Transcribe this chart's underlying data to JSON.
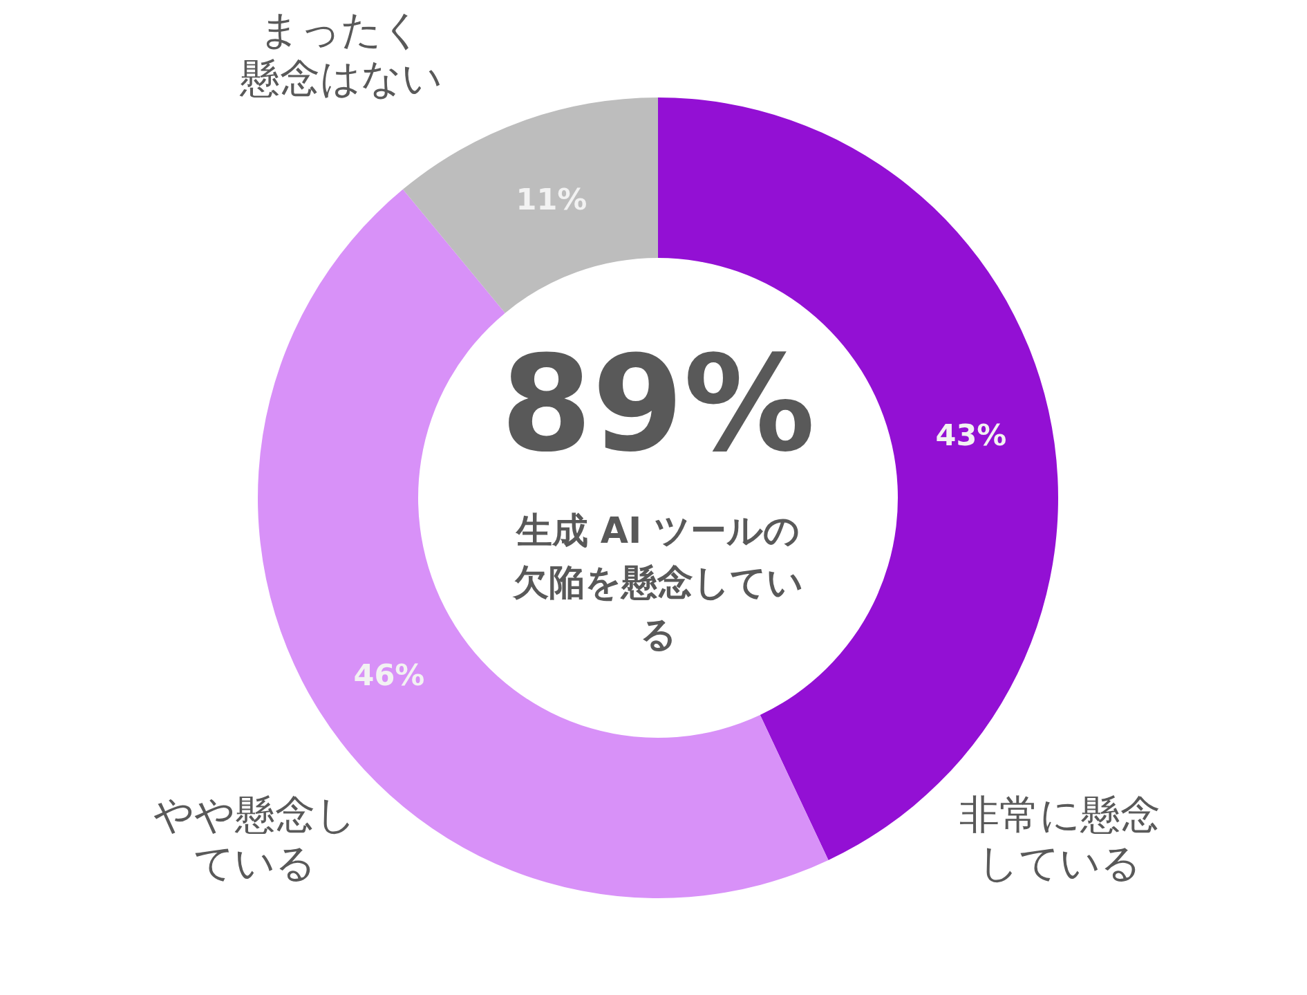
{
  "chart_data": {
    "type": "donut",
    "categories": [
      "非常に懸念している",
      "やや懸念している",
      "まったく懸念はない"
    ],
    "values": [
      43,
      46,
      11
    ],
    "colors": [
      "#9310d4",
      "#d891f8",
      "#bdbdbd"
    ],
    "value_labels": [
      "43%",
      "46%",
      "11%"
    ],
    "annotations": [
      "89%",
      "生成 AI ツールの欠陥を懸念している"
    ]
  }
}
